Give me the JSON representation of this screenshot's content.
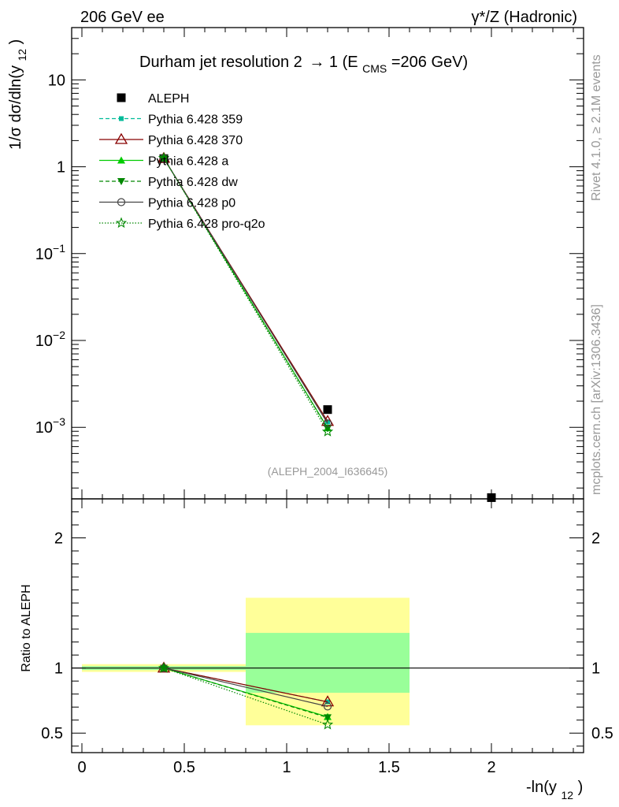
{
  "header": {
    "left": "206 GeV ee",
    "right": "γ*/Z (Hadronic)"
  },
  "side": {
    "rivet": "Rivet 4.1.0, ≥ 2.1M events",
    "mcplots": "mcplots.cern.ch [arXiv:1306.3436]"
  },
  "analysis_id": "(ALEPH_2004_I636645)",
  "colors": {
    "data": "#000000",
    "p359": "#00bb99",
    "p370": "#880000",
    "pa": "#00cc00",
    "pdw": "#008800",
    "pp0": "#444444",
    "pq2o": "#008800",
    "band_stat": "#99ff99",
    "band_tot": "#ffff99"
  },
  "chart_data": [
    {
      "type": "line",
      "panel": "main",
      "title": "Durham jet resolution 2→ 1 (E_CMS=206 GeV)",
      "title_main": "Durham jet resolution 2",
      "title_arrow": "→",
      "title_tail": " 1 (E",
      "title_sub": "CMS",
      "title_end": "=206 GeV)",
      "ylabel": "1/σ dσ/dln(y_12)",
      "ylabel_main": "1/σ  dσ/dln(y",
      "ylabel_sub": "12",
      "ylabel_end": ")",
      "yscale": "log",
      "ylim": [
        0.00015,
        40
      ],
      "xlim": [
        -0.05,
        2.45
      ],
      "ytick_labels": [
        {
          "value": 10,
          "label": "10"
        },
        {
          "value": 1,
          "label": "1"
        },
        {
          "value": 0.1,
          "base": "10",
          "exp": "−1"
        },
        {
          "value": 0.01,
          "base": "10",
          "exp": "−2"
        },
        {
          "value": 0.001,
          "base": "10",
          "exp": "−3"
        }
      ],
      "legend_position": "top-left",
      "series": [
        {
          "key": "data",
          "name": "ALEPH",
          "marker": "square",
          "x": [
            0.4,
            1.2,
            2.0
          ],
          "values": [
            1.24,
            0.0016,
            0.000155
          ]
        },
        {
          "key": "p359",
          "name": "Pythia 6.428 359",
          "marker": "smallsquare",
          "dash": "5,3",
          "x": [
            0.4,
            1.2
          ],
          "values": [
            1.25,
            0.00115
          ]
        },
        {
          "key": "p370",
          "name": "Pythia 6.428 370",
          "marker": "triangle-open",
          "dash": "",
          "x": [
            0.4,
            1.2
          ],
          "values": [
            1.25,
            0.00117
          ]
        },
        {
          "key": "pa",
          "name": "Pythia 6.428 a",
          "marker": "triangle",
          "dash": "",
          "x": [
            0.4,
            1.2
          ],
          "values": [
            1.26,
            0.00098
          ]
        },
        {
          "key": "pdw",
          "name": "Pythia 6.428 dw",
          "marker": "triangle-down",
          "dash": "5,3",
          "x": [
            0.4,
            1.2
          ],
          "values": [
            1.26,
            0.00097
          ]
        },
        {
          "key": "pp0",
          "name": "Pythia 6.428 p0",
          "marker": "circle-open",
          "dash": "",
          "x": [
            0.4,
            1.2
          ],
          "values": [
            1.25,
            0.00111
          ]
        },
        {
          "key": "pq2o",
          "name": "Pythia 6.428 pro-q2o",
          "marker": "star-open",
          "dash": "1.5,2",
          "x": [
            0.4,
            1.2
          ],
          "values": [
            1.26,
            0.00089
          ]
        }
      ]
    },
    {
      "type": "line",
      "panel": "ratio",
      "ylabel": "Ratio to ALEPH",
      "xlabel": "-ln(y_12)",
      "xlabel_main": "-ln(y",
      "xlabel_sub": "12",
      "xlabel_end": ")",
      "ylim": [
        0.35,
        2.3
      ],
      "xlim": [
        -0.05,
        2.45
      ],
      "yticks": [
        0.5,
        1,
        2
      ],
      "ytick_labels": [
        "0.5",
        "1",
        "2"
      ],
      "xticks": [
        0,
        0.5,
        1,
        1.5,
        2
      ],
      "xtick_labels": [
        "0",
        "0.5",
        "1",
        "1.5",
        "2"
      ],
      "bands": [
        {
          "x0": 0.0,
          "x1": 0.8,
          "total": [
            0.97,
            1.03
          ],
          "stat": [
            0.985,
            1.015
          ]
        },
        {
          "x0": 0.8,
          "x1": 1.6,
          "total": [
            0.56,
            1.54
          ],
          "stat": [
            0.81,
            1.27
          ]
        }
      ],
      "series": [
        {
          "key": "p359",
          "x": [
            0.4,
            1.2
          ],
          "values": [
            1.0,
            0.74
          ]
        },
        {
          "key": "p370",
          "x": [
            0.4,
            1.2
          ],
          "values": [
            1.0,
            0.74
          ]
        },
        {
          "key": "pa",
          "x": [
            0.4,
            1.2
          ],
          "values": [
            1.0,
            0.625
          ]
        },
        {
          "key": "pdw",
          "x": [
            0.4,
            1.2
          ],
          "values": [
            1.0,
            0.62
          ]
        },
        {
          "key": "pp0",
          "x": [
            0.4,
            1.2
          ],
          "values": [
            1.0,
            0.705
          ]
        },
        {
          "key": "pq2o",
          "x": [
            0.4,
            1.2
          ],
          "values": [
            1.0,
            0.565
          ]
        }
      ]
    }
  ]
}
